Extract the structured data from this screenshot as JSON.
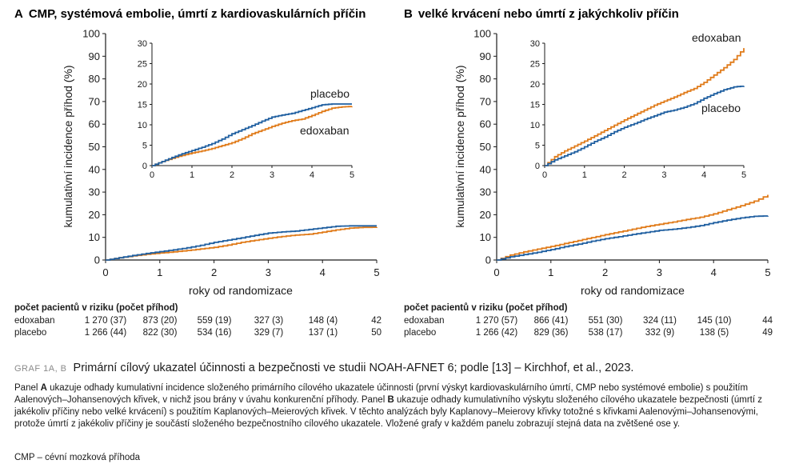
{
  "colors": {
    "edoxaban": "#E07B1A",
    "placebo": "#1F5FA0",
    "axis": "#1a1a1a"
  },
  "axes": {
    "ylabel": "kumulativní incidence příhod (%)",
    "xlabel": "roky od randomizace"
  },
  "chart_data": [
    {
      "id": "A",
      "type": "line",
      "panel_letter": "A",
      "title": "CMP, systémová embolie, úmrtí z kardiovaskulárních příčin",
      "xlabel": "roky od randomizace",
      "ylabel": "kumulativní incidence příhod (%)",
      "xlim": [
        0,
        5
      ],
      "ylim": [
        0,
        100
      ],
      "yticks": [
        0,
        10,
        20,
        30,
        40,
        50,
        60,
        70,
        80,
        90,
        100
      ],
      "xticks": [
        0,
        1,
        2,
        3,
        4,
        5
      ],
      "series": [
        {
          "name": "edoxaban",
          "label": "edoxaban",
          "x": [
            0,
            0.25,
            0.5,
            0.75,
            1.0,
            1.25,
            1.5,
            1.75,
            2.0,
            2.25,
            2.5,
            2.75,
            3.0,
            3.25,
            3.5,
            3.75,
            4.0,
            4.25,
            4.5,
            4.75,
            5.0
          ],
          "y": [
            0,
            1.0,
            1.8,
            2.5,
            3.1,
            3.6,
            4.2,
            4.9,
            5.6,
            6.6,
            7.8,
            8.7,
            9.6,
            10.4,
            11.0,
            11.4,
            12.3,
            13.3,
            14.1,
            14.4,
            14.5
          ]
        },
        {
          "name": "placebo",
          "label": "placebo",
          "x": [
            0,
            0.25,
            0.5,
            0.75,
            1.0,
            1.25,
            1.5,
            1.75,
            2.0,
            2.25,
            2.5,
            2.75,
            3.0,
            3.25,
            3.5,
            3.75,
            4.0,
            4.25,
            4.5,
            4.75,
            5.0
          ],
          "y": [
            0,
            1.0,
            2.0,
            2.9,
            3.7,
            4.5,
            5.4,
            6.5,
            7.8,
            8.8,
            9.8,
            10.9,
            11.9,
            12.4,
            12.8,
            13.5,
            14.2,
            14.9,
            15.1,
            15.1,
            15.1
          ]
        }
      ],
      "inset": {
        "xlim": [
          0,
          5
        ],
        "ylim": [
          0,
          30
        ],
        "xticks": [
          0,
          1,
          2,
          3,
          4,
          5
        ],
        "yticks": [
          0,
          5,
          10,
          15,
          20,
          25,
          30
        ]
      },
      "risk_table": {
        "header": "počet pacientů v riziku (počet příhod)",
        "rows": [
          {
            "name": "edoxaban",
            "values": [
              "1 270 (37)",
              "873 (20)",
              "559 (19)",
              "327 (3)",
              "148 (4)",
              "42"
            ]
          },
          {
            "name": "placebo",
            "values": [
              "1 266 (44)",
              "822 (30)",
              "534 (16)",
              "329 (7)",
              "137 (1)",
              "50"
            ]
          }
        ]
      }
    },
    {
      "id": "B",
      "type": "line",
      "panel_letter": "B",
      "title": "velké krvácení nebo úmrtí z jakýchkoliv příčin",
      "xlabel": "roky od randomizace",
      "ylabel": "kumulativní incidence příhod (%)",
      "xlim": [
        0,
        5
      ],
      "ylim": [
        0,
        100
      ],
      "yticks": [
        0,
        10,
        20,
        30,
        40,
        50,
        60,
        70,
        80,
        90,
        100
      ],
      "xticks": [
        0,
        1,
        2,
        3,
        4,
        5
      ],
      "series": [
        {
          "name": "edoxaban",
          "label": "edoxaban",
          "x": [
            0,
            0.25,
            0.5,
            0.75,
            1.0,
            1.25,
            1.5,
            1.75,
            2.0,
            2.25,
            2.5,
            2.75,
            3.0,
            3.25,
            3.5,
            3.75,
            4.0,
            4.25,
            4.5,
            4.75,
            5.0
          ],
          "y": [
            0,
            2.2,
            3.6,
            4.8,
            6.0,
            7.3,
            8.6,
            9.9,
            11.2,
            12.4,
            13.6,
            14.8,
            15.8,
            16.8,
            17.9,
            18.9,
            20.4,
            22.2,
            24.0,
            26.0,
            28.8
          ]
        },
        {
          "name": "placebo",
          "label": "placebo",
          "x": [
            0,
            0.25,
            0.5,
            0.75,
            1.0,
            1.25,
            1.5,
            1.75,
            2.0,
            2.25,
            2.5,
            2.75,
            3.0,
            3.25,
            3.5,
            3.75,
            4.0,
            4.25,
            4.5,
            4.75,
            5.0
          ],
          "y": [
            0,
            1.4,
            2.4,
            3.4,
            4.6,
            5.9,
            7.0,
            8.3,
            9.4,
            10.3,
            11.3,
            12.2,
            13.1,
            13.6,
            14.3,
            15.2,
            16.5,
            17.6,
            18.6,
            19.3,
            19.5
          ]
        }
      ],
      "inset": {
        "xlim": [
          0,
          5
        ],
        "ylim": [
          0,
          30
        ],
        "xticks": [
          0,
          1,
          2,
          3,
          4,
          5
        ],
        "yticks": [
          0,
          5,
          10,
          15,
          20,
          25,
          30
        ]
      },
      "risk_table": {
        "header": "počet pacientů v riziku (počet příhod)",
        "rows": [
          {
            "name": "edoxaban",
            "values": [
              "1 270 (57)",
              "866 (41)",
              "551 (30)",
              "324 (11)",
              "145 (10)",
              "44"
            ]
          },
          {
            "name": "placebo",
            "values": [
              "1 266 (42)",
              "829 (36)",
              "538 (17)",
              "332 (9)",
              "138 (5)",
              "49"
            ]
          }
        ]
      }
    }
  ],
  "caption": {
    "tag": "GRAF 1A, B",
    "title": "Primární cílový ukazatel účinnosti a bezpečnosti ve studii NOAH-AFNET 6; podle [13] – Kirchhof, et al., 2023.",
    "body_1": "Panel ",
    "body_A": "A",
    "body_2": " ukazuje odhady kumulativní incidence složeného primárního cílového ukazatele účinnosti (první výskyt kardiovaskulárního úmrtí, CMP nebo systémové embolie) s použitím Aalenových–Johansenových křivek, v nichž jsou brány v úvahu konkurenční příhody. Panel ",
    "body_B": "B",
    "body_3": " ukazuje odhady kumulativního výskytu složeného cílového ukazatele bezpečnosti (úmrtí z jakékoliv příčiny nebo velké krvácení) s použitím Kaplanových–Meierových křivek. V těchto analýzách byly Kaplanovy–Meierovy křivky totožné s křivkami Aalenovými–Johansenovými, protože úmrtí z jakékoliv příčiny je součástí složeného bezpečnostního cílového ukazatele. Vložené grafy v každém panelu zobrazují stejná data na zvětšené ose y.",
    "abbr": "CMP – cévní mozková příhoda"
  }
}
